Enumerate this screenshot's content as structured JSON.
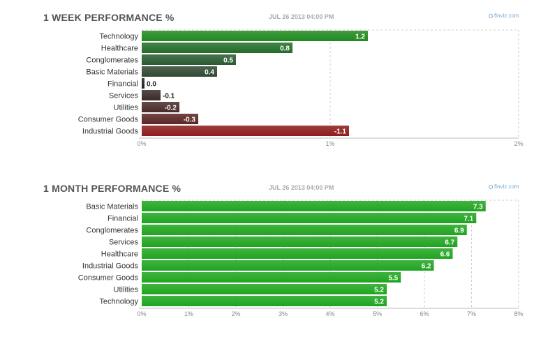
{
  "chart_data": [
    {
      "type": "bar",
      "title": "1 WEEK PERFORMANCE %",
      "date": "JUL 26 2013 04:00 PM",
      "source": "finviz.com",
      "categories": [
        "Technology",
        "Healthcare",
        "Conglomerates",
        "Basic Materials",
        "Financial",
        "Services",
        "Utilities",
        "Consumer Goods",
        "Industrial Goods"
      ],
      "values": [
        1.2,
        0.8,
        0.5,
        0.4,
        0.0,
        -0.1,
        -0.2,
        -0.3,
        -1.1
      ],
      "value_labels": [
        "1.2",
        "0.8",
        "0.5",
        "0.4",
        "0.0",
        "-0.1",
        "-0.2",
        "-0.3",
        "-1.1"
      ],
      "xlim": [
        0,
        2
      ],
      "xticks": [
        "0%",
        "1%",
        "2%"
      ],
      "bar_colors": [
        "#1f8a1f",
        "#236d2a",
        "#2a5a30",
        "#2f4a32",
        "#222222",
        "#3a2a2a",
        "#4a2a2a",
        "#5a2525",
        "#8e1c1c"
      ],
      "grid": true
    },
    {
      "type": "bar",
      "title": "1 MONTH PERFORMANCE %",
      "date": "JUL 26 2013 04:00 PM",
      "source": "finviz.com",
      "categories": [
        "Basic Materials",
        "Financial",
        "Conglomerates",
        "Services",
        "Healthcare",
        "Industrial Goods",
        "Consumer Goods",
        "Utilities",
        "Technology"
      ],
      "values": [
        7.3,
        7.1,
        6.9,
        6.7,
        6.6,
        6.2,
        5.5,
        5.2,
        5.2
      ],
      "value_labels": [
        "7.3",
        "7.1",
        "6.9",
        "6.7",
        "6.6",
        "6.2",
        "5.5",
        "5.2",
        "5.2"
      ],
      "xlim": [
        0,
        8
      ],
      "xticks": [
        "0%",
        "1%",
        "2%",
        "3%",
        "4%",
        "5%",
        "6%",
        "7%",
        "8%"
      ],
      "bar_colors": [
        "#1fa51f",
        "#1fa51f",
        "#1fa51f",
        "#1fa51f",
        "#1fa51f",
        "#1fa51f",
        "#1fa51f",
        "#1fa51f",
        "#1fa51f"
      ],
      "grid": true
    }
  ]
}
